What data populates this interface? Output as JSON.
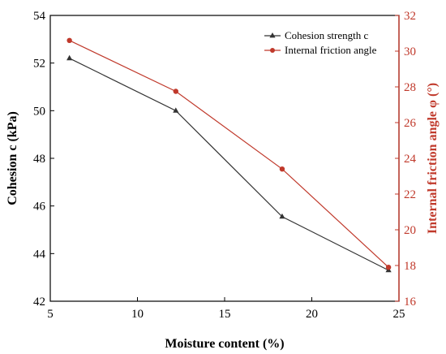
{
  "chart_data": {
    "type": "line",
    "x": [
      6.1,
      12.2,
      18.3,
      24.4
    ],
    "xlabel": "Moisture content (%)",
    "ylabel_left": "Cohesion  c (kPa)",
    "ylabel_right": "Internal friction angle φ (°)",
    "xlim": [
      5,
      25
    ],
    "ylim_left": [
      42,
      54
    ],
    "ylim_right": [
      16,
      32
    ],
    "x_ticks": [
      5,
      10,
      15,
      20,
      25
    ],
    "y_left_ticks": [
      42,
      44,
      46,
      48,
      50,
      52,
      54
    ],
    "y_right_ticks": [
      16,
      18,
      20,
      22,
      24,
      26,
      28,
      30,
      32
    ],
    "legend_position": "top-right",
    "grid": false,
    "series": [
      {
        "name": "Cohesion strength c",
        "axis": "left",
        "marker": "triangle",
        "color": "#333333",
        "values": [
          52.2,
          50.0,
          45.55,
          43.3
        ]
      },
      {
        "name": "Internal friction angle",
        "axis": "right",
        "marker": "circle",
        "color": "#c0392b",
        "values": [
          30.6,
          27.75,
          23.4,
          17.9
        ]
      }
    ],
    "axis_colors": {
      "left": "#000000",
      "right": "#c0392b"
    }
  }
}
